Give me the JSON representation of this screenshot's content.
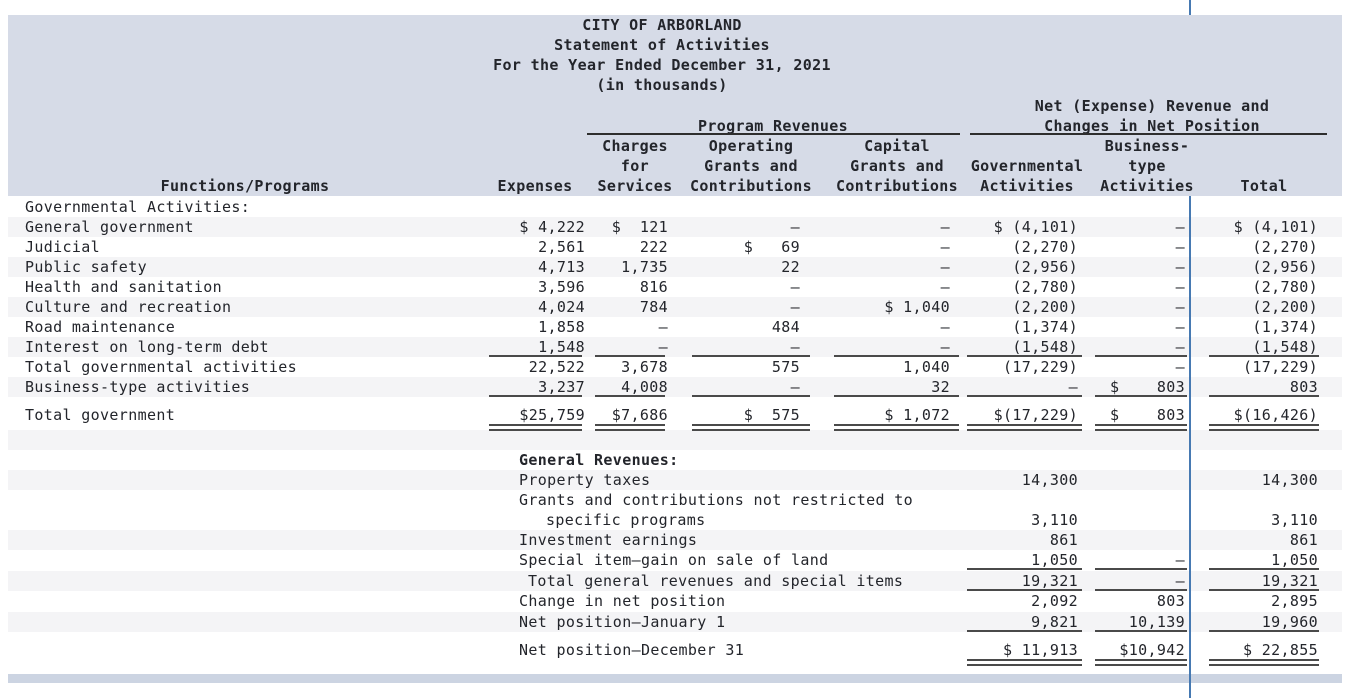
{
  "title": {
    "lines": [
      "CITY OF ARBORLAND",
      "Statement of Activities",
      "For the Year Ended December 31, 2021",
      "(in thousands)"
    ]
  },
  "colors": {
    "header_panel_bg": "#d6dbe7",
    "footer_band_bg": "#ccd4e2",
    "zebra_stripe": "#f4f4f6",
    "divider_line_blue": "#4679b2",
    "total_rule": "#4a4a4a",
    "text": "#23252b"
  },
  "table": {
    "group_headers": {
      "program_revenues": "Program Revenues",
      "net_expense_line1": "Net (Expense) Revenue and",
      "net_expense_line2": "Changes in Net Position"
    },
    "columns": {
      "functions": [
        "Functions/Programs"
      ],
      "expenses": [
        "Expenses"
      ],
      "charges": [
        "Charges",
        "for",
        "Services"
      ],
      "operating": [
        "Operating",
        "Grants and",
        "Contributions"
      ],
      "capital": [
        "Capital",
        "Grants and",
        "Contributions"
      ],
      "governmental": [
        "Governmental",
        "Activities"
      ],
      "business": [
        "Business-",
        "type",
        "Activities"
      ],
      "total": [
        "Total"
      ]
    },
    "rows": [
      {
        "label": "Governmental Activities:",
        "cells": [
          "",
          "",
          "",
          "",
          "",
          "",
          ""
        ]
      },
      {
        "label": "General government",
        "stripe": true,
        "cells": [
          "$ 4,222",
          "$  121",
          "–",
          "–",
          "$ (4,101)",
          "–",
          "$ (4,101)"
        ]
      },
      {
        "label": "Judicial",
        "cells": [
          "2,561",
          "222",
          "$   69",
          "–",
          "(2,270)",
          "–",
          "(2,270)"
        ]
      },
      {
        "label": "Public safety",
        "stripe": true,
        "cells": [
          "4,713",
          "1,735",
          "22",
          "–",
          "(2,956)",
          "–",
          "(2,956)"
        ]
      },
      {
        "label": "Health and sanitation",
        "cells": [
          "3,596",
          "816",
          "–",
          "–",
          "(2,780)",
          "–",
          "(2,780)"
        ]
      },
      {
        "label": "Culture and recreation",
        "stripe": true,
        "cells": [
          "4,024",
          "784",
          "–",
          "$ 1,040",
          "(2,200)",
          "–",
          "(2,200)"
        ]
      },
      {
        "label": "Road maintenance",
        "cells": [
          "1,858",
          "–",
          "484",
          "–",
          "(1,374)",
          "–",
          "(1,374)"
        ]
      },
      {
        "label": "Interest on long-term debt",
        "stripe": true,
        "rule": "single",
        "cells": [
          "1,548",
          "–",
          "–",
          "–",
          "(1,548)",
          "–",
          "(1,548)"
        ]
      },
      {
        "label": "Total governmental activities",
        "cells": [
          "22,522",
          "3,678",
          "575",
          "1,040",
          "(17,229)",
          "–",
          "(17,229)"
        ]
      },
      {
        "label": "Business-type activities",
        "stripe": true,
        "rule": "single",
        "cells": [
          "3,237",
          "4,008",
          "–",
          "32",
          "–",
          "$    803",
          "803"
        ]
      },
      {
        "label": "Total government",
        "rule": "double",
        "cells": [
          "$25,759",
          "$7,686",
          "$  575",
          "$ 1,072",
          "$(17,229)",
          "$    803",
          "$(16,426)"
        ]
      }
    ],
    "general_revenues_rows": [
      {
        "label": "General Revenues:",
        "bold": true,
        "cells": [
          "",
          "",
          ""
        ]
      },
      {
        "label": "Property taxes",
        "stripe": true,
        "cells": [
          "14,300",
          "",
          "14,300"
        ]
      },
      {
        "label": "Grants and contributions not restricted to",
        "cells": [
          "",
          "",
          ""
        ]
      },
      {
        "label": "specific programs",
        "indent": 27,
        "cells": [
          "3,110",
          "",
          "3,110"
        ]
      },
      {
        "label": "Investment earnings",
        "stripe": true,
        "cells": [
          "861",
          "",
          "861"
        ]
      },
      {
        "label": "Special item—gain on sale of land",
        "rule": "single",
        "cells": [
          "1,050",
          "–",
          "1,050"
        ]
      },
      {
        "label": "Total general revenues and special items",
        "indent": 9,
        "stripe": true,
        "rule": "single",
        "cells": [
          "19,321",
          "–",
          "19,321"
        ]
      },
      {
        "label": "Change in net position",
        "cells": [
          "2,092",
          "803",
          "2,895"
        ]
      },
      {
        "label": "Net position—January 1",
        "stripe": true,
        "rule": "single",
        "cells": [
          "9,821",
          "10,139",
          "19,960"
        ]
      },
      {
        "label": "Net position—December 31",
        "rule": "double",
        "cells": [
          "$ 11,913",
          "$10,942",
          "$ 22,855"
        ]
      }
    ]
  }
}
